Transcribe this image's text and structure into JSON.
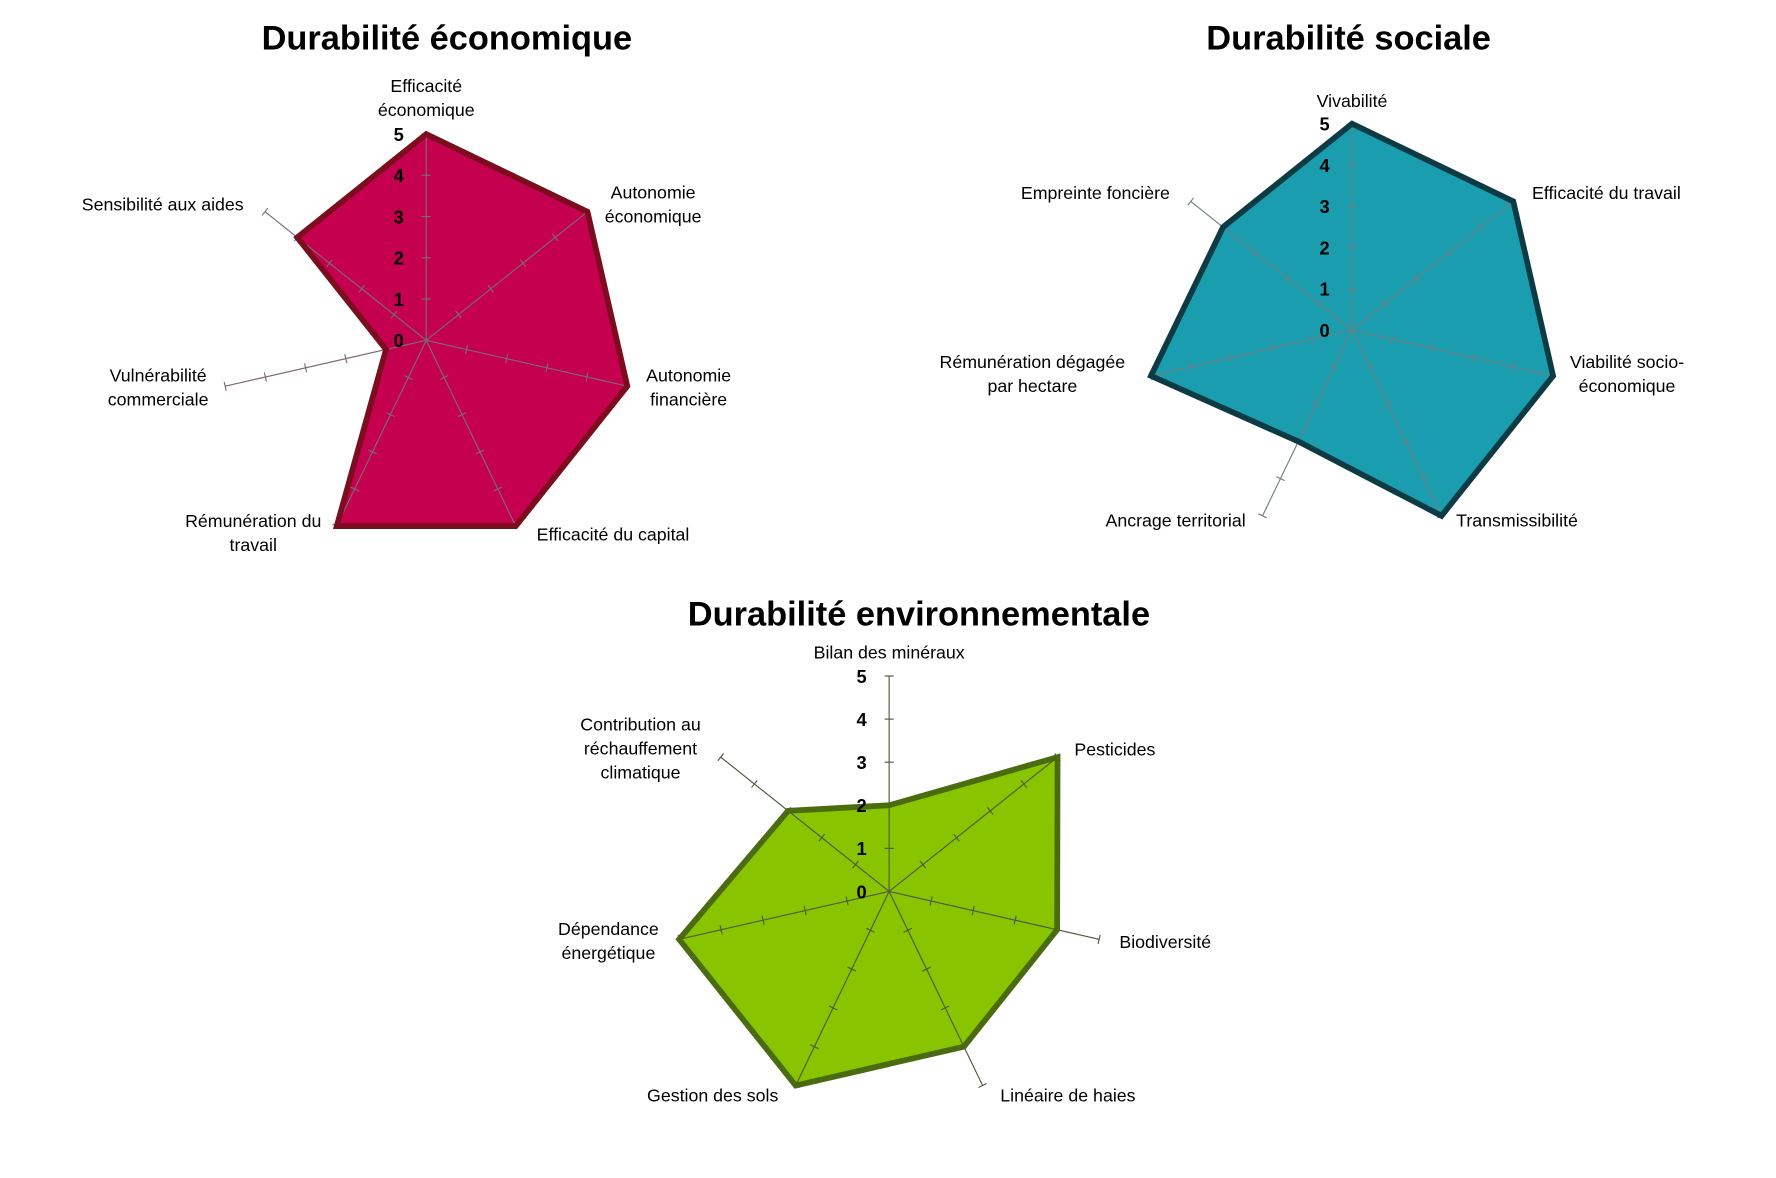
{
  "chart_data": [
    {
      "type": "radar",
      "title": "Durabilité économique",
      "rlim": [
        0,
        5
      ],
      "ticks": [
        "0",
        "1",
        "2",
        "3",
        "4",
        "5"
      ],
      "fill_color": "#C4004F",
      "line_color": "#7B0D1E",
      "axes": [
        {
          "label": "Efficacité\néconomique",
          "value": 5
        },
        {
          "label": "Autonomie\néconomique",
          "value": 5
        },
        {
          "label": "Autonomie\nfinancière",
          "value": 5
        },
        {
          "label": "Efficacité du capital",
          "value": 5
        },
        {
          "label": "Rémunération du\ntravail",
          "value": 5
        },
        {
          "label": "Vulnérabilité\ncommerciale",
          "value": 1
        },
        {
          "label": "Sensibilité aux aides",
          "value": 4
        }
      ]
    },
    {
      "type": "radar",
      "title": "Durabilité sociale",
      "rlim": [
        0,
        5
      ],
      "ticks": [
        "0",
        "1",
        "2",
        "3",
        "4",
        "5"
      ],
      "fill_color": "#1A9DAE",
      "line_color": "#0D3B44",
      "axes": [
        {
          "label": "Vivabilité",
          "value": 5
        },
        {
          "label": "Efficacité du travail",
          "value": 5
        },
        {
          "label": "Viabilité socio-\néconomique",
          "value": 5
        },
        {
          "label": "Transmissibilité",
          "value": 5
        },
        {
          "label": "Ancrage territorial",
          "value": 3
        },
        {
          "label": "Rémunération dégagée\npar hectare",
          "value": 5
        },
        {
          "label": "Empreinte foncière",
          "value": 4
        }
      ]
    },
    {
      "type": "radar",
      "title": "Durabilité environnementale",
      "rlim": [
        0,
        5
      ],
      "ticks": [
        "0",
        "1",
        "2",
        "3",
        "4",
        "5"
      ],
      "fill_color": "#88C400",
      "line_color": "#4A6B10",
      "axes": [
        {
          "label": "Bilan des minéraux",
          "value": 2
        },
        {
          "label": "Pesticides",
          "value": 5
        },
        {
          "label": "Biodiversité",
          "value": 4
        },
        {
          "label": "Linéaire de haies",
          "value": 4
        },
        {
          "label": "Gestion des sols",
          "value": 5
        },
        {
          "label": "Dépendance\nénergétique",
          "value": 5
        },
        {
          "label": "Contribution au\nréchauffement\nclimatique",
          "value": 3
        }
      ]
    }
  ]
}
